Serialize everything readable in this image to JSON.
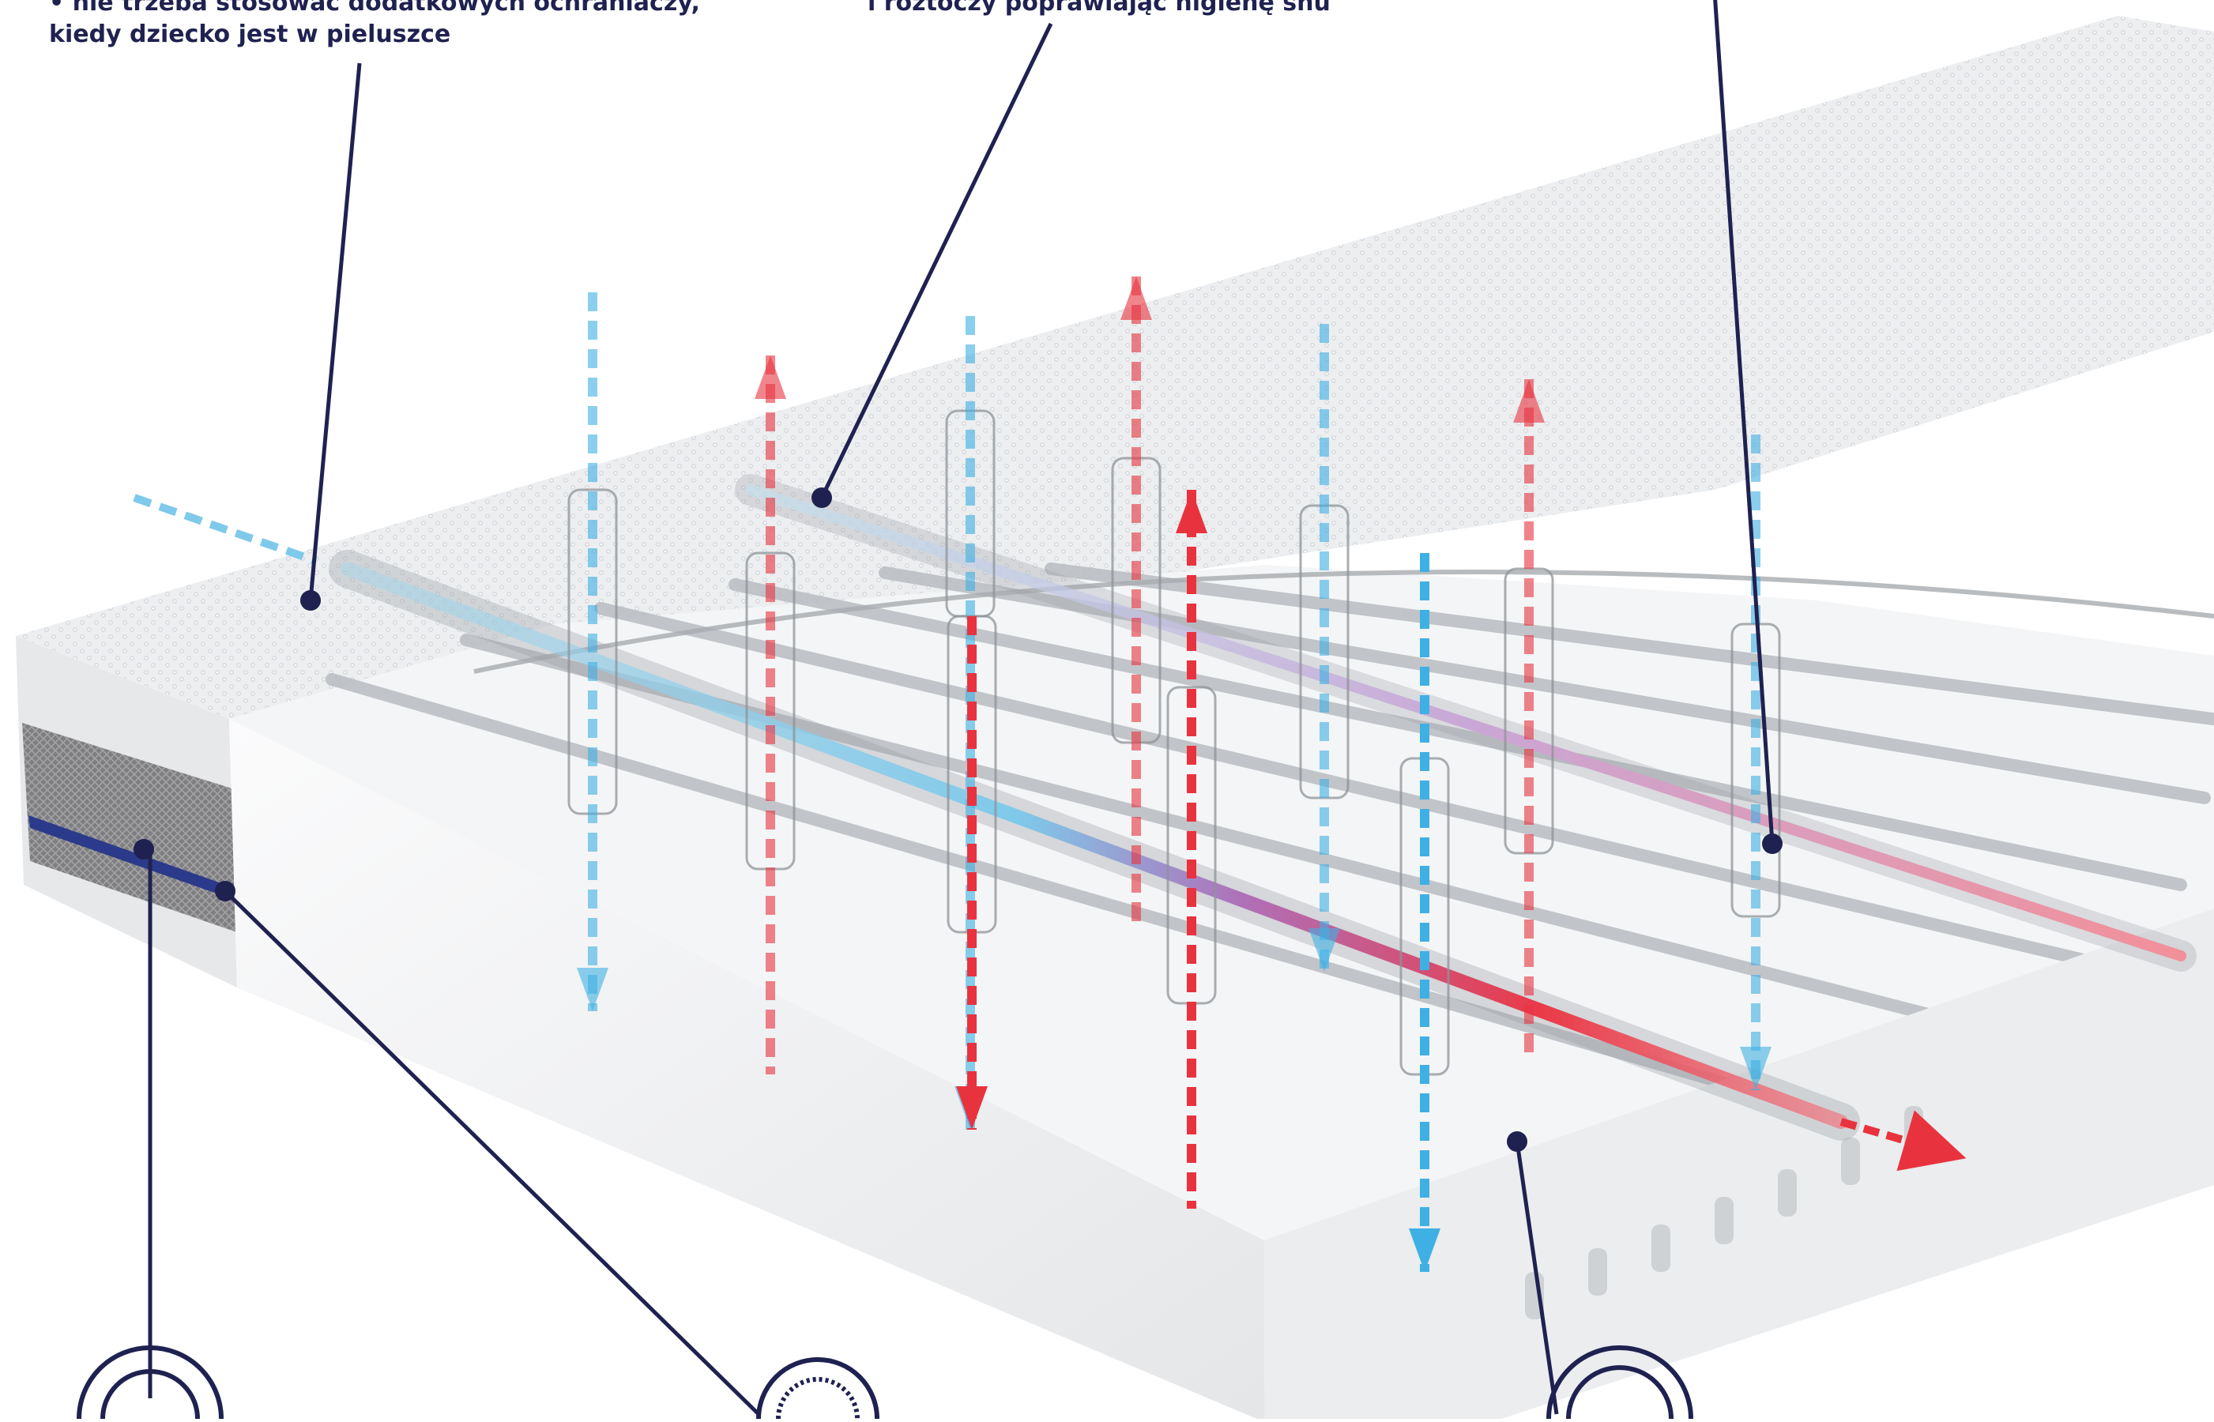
{
  "captions": {
    "left_line1": "• nie trzeba stosować dodatkowych ochraniaczy,",
    "left_line2": "kiedy dziecko jest w pieluszce",
    "middle_line1": "i roztoczy poprawiając higienę snu"
  },
  "colors": {
    "callout_line": "#1f2150",
    "warm_air": "#e8333f",
    "cool_air": "#3fb0e3",
    "mattress_cover": "#eef0f2",
    "foam": "#f2f3f4",
    "spacer_mesh": "#8a8a8c",
    "blue_stripe": "#2b3a8a"
  },
  "icons": [
    "mattress-icon",
    "air-flow-arrow-icon",
    "callout-badge-icon"
  ]
}
